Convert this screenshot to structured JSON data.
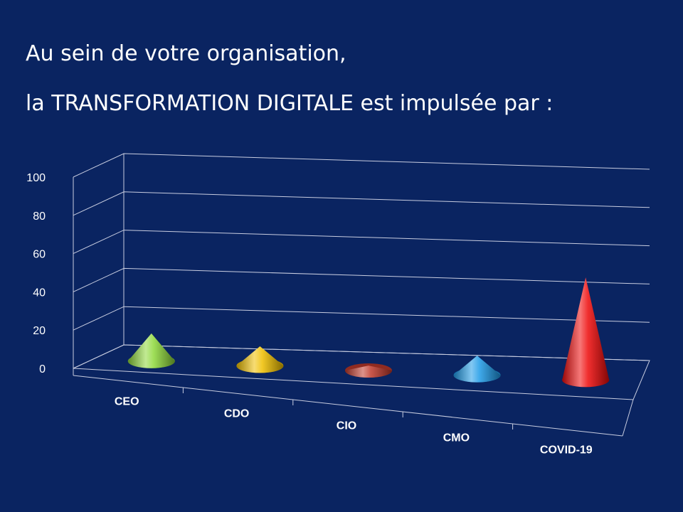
{
  "slide": {
    "title_line1": "Au sein de votre organisation,",
    "title_line2": "la TRANSFORMATION DIGITALE est impulsée par :"
  },
  "chart_data": {
    "type": "bar",
    "style": "3d-cone",
    "categories": [
      "CEO",
      "CDO",
      "CIO",
      "CMO",
      "COVID-19"
    ],
    "series": [
      {
        "values": [
          17,
          12,
          3,
          12,
          63
        ]
      }
    ],
    "cone_colors": [
      "#8ed83a",
      "#f0c000",
      "#c0392b",
      "#1e9be8",
      "#ee0a0a"
    ],
    "ylim": [
      0,
      100
    ],
    "yticks": [
      0,
      20,
      40,
      60,
      80,
      100
    ],
    "grid": true,
    "legend": "none",
    "title": "",
    "xlabel": "",
    "ylabel": ""
  },
  "colors": {
    "background": "#0a2461",
    "text": "#ffffff",
    "grid": "#c8cde0"
  }
}
